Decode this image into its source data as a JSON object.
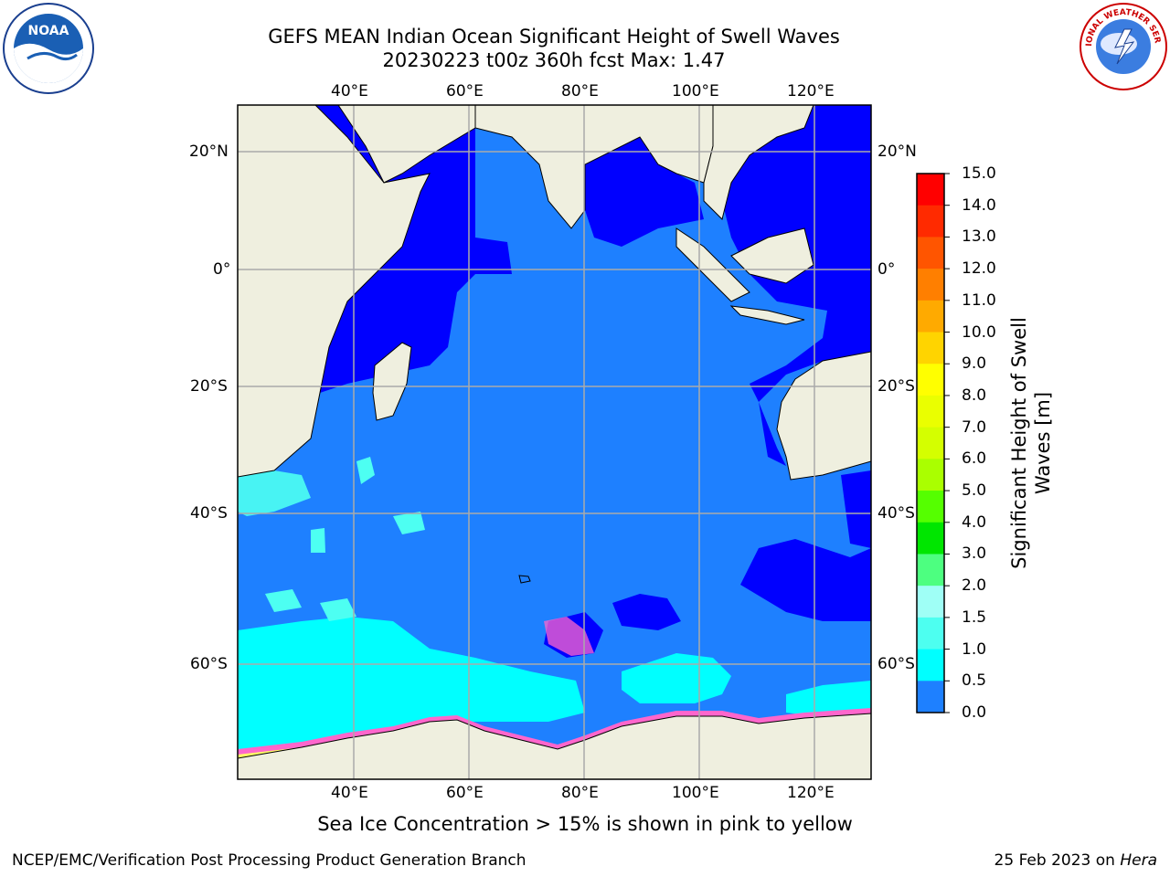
{
  "title": {
    "line1": "GEFS MEAN Indian Ocean Significant Height of Swell Waves",
    "line2": "20230223 t00z 360h fcst   Max: 1.47"
  },
  "logos": {
    "left": {
      "icon": "noaa-logo",
      "text": "NOAA"
    },
    "right": {
      "icon": "national-weather-service-logo",
      "text": "NATIONAL WEATHER SERVICE"
    }
  },
  "map": {
    "region": "Indian Ocean",
    "lon_labels": [
      "40°E",
      "60°E",
      "80°E",
      "100°E",
      "120°E"
    ],
    "lat_labels": [
      "20°N",
      "0°",
      "20°S",
      "40°S",
      "60°S"
    ],
    "ocean_colors": {
      "deep_blue": "#0000ff",
      "mid_blue": "#1e80ff",
      "cyan": "#00ffff",
      "light_cyan": "#4dfff2",
      "land": "#efefdf",
      "ice_pink": "#ff66cc",
      "ice_yellow": "#ffff66"
    }
  },
  "colorbar": {
    "title_line1": "Significant Height of Swell",
    "title_line2": "Waves [m]",
    "ticks": [
      "15.0",
      "14.0",
      "13.0",
      "12.0",
      "11.0",
      "10.0",
      "9.0",
      "8.0",
      "7.0",
      "6.0",
      "5.0",
      "4.0",
      "3.0",
      "2.0",
      "1.5",
      "1.0",
      "0.5",
      "0.0"
    ],
    "colors": [
      "#ff0000",
      "#ff2a00",
      "#ff5500",
      "#ff7f00",
      "#ffaa00",
      "#ffd400",
      "#ffff00",
      "#eaff00",
      "#d4ff00",
      "#aaff00",
      "#55ff00",
      "#00e600",
      "#4dff80",
      "#9ffff6",
      "#4dfff0",
      "#00ffff",
      "#1e80ff",
      "#0000ff"
    ]
  },
  "note": "Sea Ice Concentration > 15% is shown in pink to yellow",
  "footer": {
    "left": "NCEP/EMC/Verification Post Processing Product Generation Branch",
    "right_date": "25 Feb 2023 on ",
    "right_machine": "Hera"
  }
}
